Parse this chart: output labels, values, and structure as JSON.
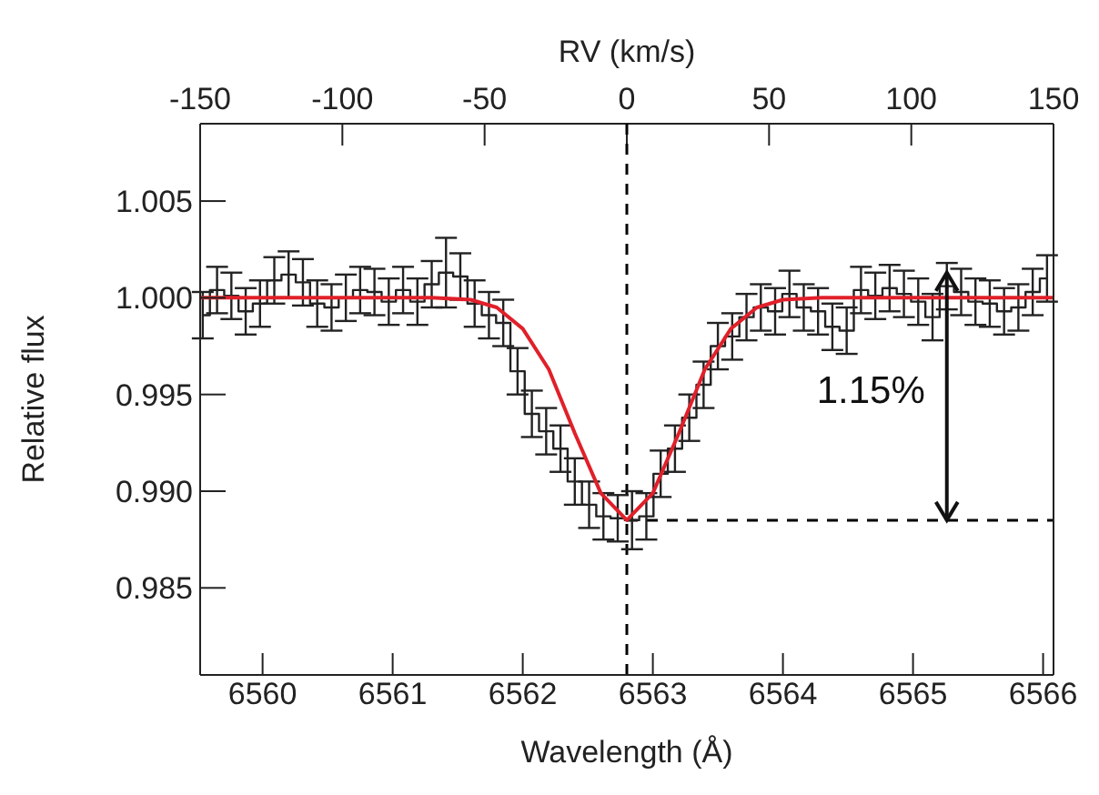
{
  "chart_data": {
    "type": "step",
    "xlabel": "Wavelength (Å)",
    "ylabel": "Relative flux",
    "x2label": "RV (km/s)",
    "xlim": [
      6559.52,
      6566.08
    ],
    "xticks": [
      6560,
      6561,
      6562,
      6563,
      6564,
      6565,
      6566
    ],
    "x2lim": [
      -150,
      150
    ],
    "x2ticks": [
      -150,
      -100,
      -50,
      0,
      50,
      100,
      150
    ],
    "ylim": [
      0.9805,
      1.009
    ],
    "yticks": [
      0.985,
      {
        "value": 0.99,
        "label": "0.990"
      },
      0.995,
      {
        "value": 1,
        "label": "1.000"
      },
      1.005
    ],
    "grid": false,
    "marker": "none",
    "series": [
      {
        "color": "#222222",
        "x": [
          6559.54,
          6559.65,
          6559.76,
          6559.87,
          6559.98,
          6560.09,
          6560.2,
          6560.31,
          6560.42,
          6560.53,
          6560.64,
          6560.75,
          6560.86,
          6560.97,
          6561.08,
          6561.19,
          6561.3,
          6561.41,
          6561.52,
          6561.63,
          6561.74,
          6561.85,
          6561.96,
          6562.07,
          6562.18,
          6562.29,
          6562.4,
          6562.51,
          6562.62,
          6562.73,
          6562.84,
          6562.95,
          6563.06,
          6563.17,
          6563.28,
          6563.39,
          6563.5,
          6563.61,
          6563.72,
          6563.83,
          6563.94,
          6564.05,
          6564.16,
          6564.27,
          6564.38,
          6564.49,
          6564.6,
          6564.71,
          6564.82,
          6564.93,
          6565.04,
          6565.15,
          6565.26,
          6565.37,
          6565.48,
          6565.59,
          6565.7,
          6565.81,
          6565.92,
          6566.03
        ],
        "values": [
          0.9991,
          1.0004,
          1.0001,
          0.9993,
          0.9997,
          1.0009,
          1.0012,
          1.0008,
          0.9997,
          0.9995,
          1.0,
          1.0004,
          1.0003,
          0.9998,
          1.0004,
          0.9998,
          1.0007,
          1.0013,
          1.0011,
          0.9997,
          0.9991,
          0.9987,
          0.9962,
          0.994,
          0.9931,
          0.9922,
          0.9905,
          0.9893,
          0.9887,
          0.9886,
          0.9885,
          0.9887,
          0.9909,
          0.9922,
          0.9938,
          0.9955,
          0.9975,
          0.998,
          0.999,
          0.9995,
          0.9993,
          1.0002,
          0.9995,
          0.9993,
          0.9985,
          0.9983,
          1.0004,
          1.0001,
          1.0005,
          1.0002,
          0.9998,
          0.999,
          1.0006,
          1.0003,
          0.9998,
          0.9997,
          0.9993,
          0.9995,
          1.0003,
          1.001
        ],
        "errors": [
          0.0012,
          0.0012,
          0.0012,
          0.0012,
          0.0012,
          0.0012,
          0.0012,
          0.0012,
          0.0012,
          0.0012,
          0.0012,
          0.0012,
          0.0012,
          0.0012,
          0.0012,
          0.0012,
          0.0012,
          0.0018,
          0.0012,
          0.0012,
          0.0012,
          0.0012,
          0.0012,
          0.0012,
          0.0012,
          0.0012,
          0.0012,
          0.0012,
          0.0012,
          0.0012,
          0.0015,
          0.0012,
          0.0012,
          0.0012,
          0.0012,
          0.0012,
          0.0012,
          0.0012,
          0.0012,
          0.0012,
          0.0012,
          0.0012,
          0.0012,
          0.0012,
          0.0012,
          0.0012,
          0.0012,
          0.0012,
          0.0012,
          0.0012,
          0.0012,
          0.0012,
          0.0012,
          0.0012,
          0.0012,
          0.0012,
          0.0012,
          0.0012,
          0.0012,
          0.0012
        ]
      },
      {
        "type": "line",
        "color": "#e0202a",
        "x": [
          6559.52,
          6561.3,
          6561.6,
          6561.8,
          6562.0,
          6562.2,
          6562.4,
          6562.6,
          6562.8,
          6563.0,
          6563.2,
          6563.4,
          6563.6,
          6563.8,
          6564.0,
          6564.3,
          6566.08
        ],
        "values": [
          1.0,
          1.0,
          0.9999,
          0.9995,
          0.9984,
          0.9963,
          0.993,
          0.9899,
          0.9885,
          0.9899,
          0.993,
          0.9963,
          0.9984,
          0.9995,
          0.9999,
          1.0,
          1.0
        ]
      }
    ],
    "ref_lines": [
      {
        "axis": "x",
        "value": 6562.8,
        "line_style": "dashed",
        "color": "#000000"
      },
      {
        "axis": "y",
        "value": 0.9885,
        "line_style": "dashed",
        "color": "#000000"
      }
    ],
    "annotations": [
      "1.15%"
    ]
  }
}
